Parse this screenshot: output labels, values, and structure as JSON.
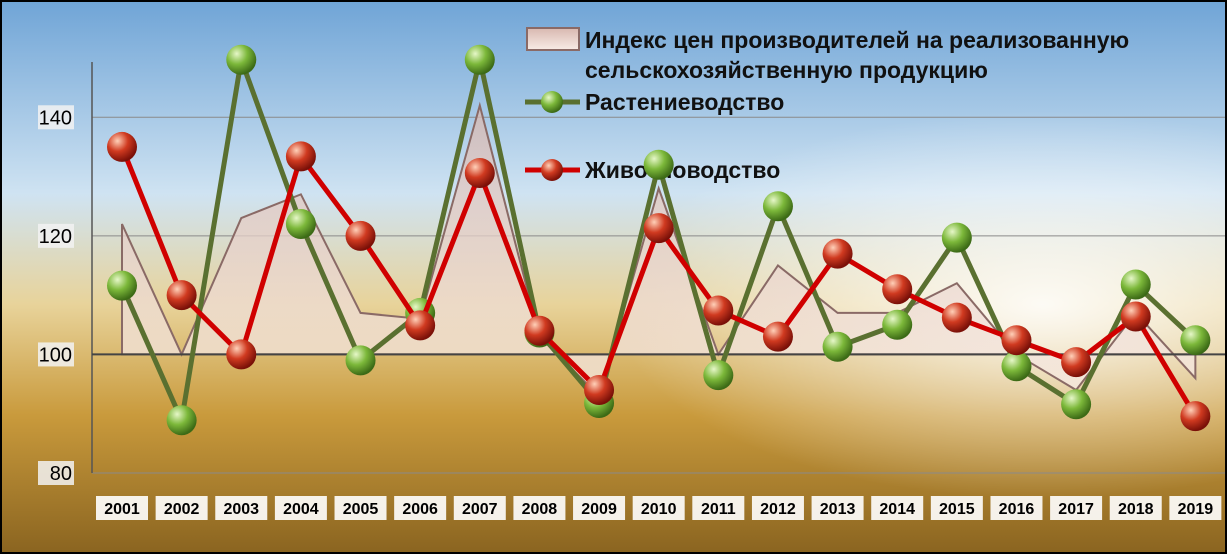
{
  "chart_data": {
    "type": "line",
    "categories": [
      "2001",
      "2002",
      "2003",
      "2004",
      "2005",
      "2006",
      "2007",
      "2008",
      "2009",
      "2010",
      "2011",
      "2012",
      "2013",
      "2014",
      "2015",
      "2016",
      "2017",
      "2018",
      "2019"
    ],
    "series": [
      {
        "name": "Индекс цен производителей на реализованную сельскохозяйственную продукцию",
        "type": "area",
        "color": "#e8c9c0",
        "values": [
          122,
          100,
          123,
          127,
          107,
          106,
          142,
          103,
          93,
          128,
          100,
          115,
          107,
          107,
          112,
          100,
          94,
          107,
          96
        ]
      },
      {
        "name": "Растениеводство",
        "type": "line",
        "color": "#5a7030",
        "marker": "#7cb83a",
        "values": [
          111.6,
          88.9,
          149.7,
          122,
          99,
          107,
          149.7,
          103.7,
          91.8,
          132,
          96.5,
          125,
          101.3,
          105,
          119.7,
          98,
          91.6,
          111.8,
          102.4
        ]
      },
      {
        "name": "Животноводство",
        "type": "line",
        "color": "#d00000",
        "marker": "#c83020",
        "values": [
          135,
          110,
          100,
          133.4,
          120,
          104.9,
          130.6,
          104,
          94,
          121.3,
          107.4,
          103,
          117,
          111,
          106.2,
          102.4,
          98.7,
          106.4,
          89.6
        ]
      }
    ],
    "ylim": [
      80,
      150
    ],
    "yticks": [
      80,
      100,
      120,
      140
    ],
    "grid": true,
    "xaxis_crosses": 100,
    "legend": "top-right"
  }
}
